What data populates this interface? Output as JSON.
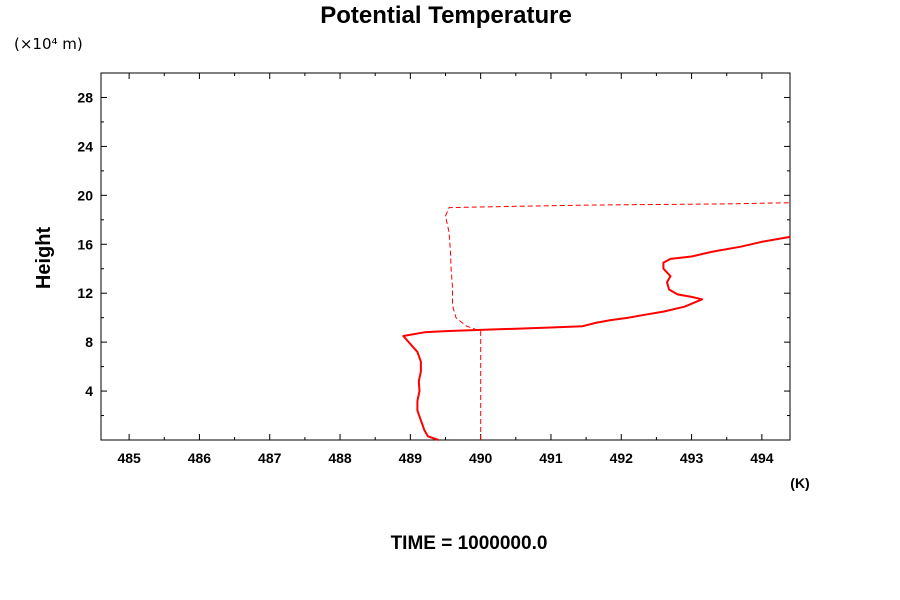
{
  "chart_data": {
    "type": "line",
    "title": "Potential Temperature",
    "ylabel": "Height",
    "y_unit": "(×10⁴ m)",
    "x_unit": "(K)",
    "footer": "TIME = 1000000.0",
    "xlim": [
      484.6,
      494.4
    ],
    "ylim": [
      0,
      30
    ],
    "x_ticks": [
      485,
      486,
      487,
      488,
      489,
      490,
      491,
      492,
      493,
      494
    ],
    "y_ticks": [
      4,
      8,
      12,
      16,
      20,
      24,
      28
    ],
    "grid": false,
    "series": [
      {
        "style": "solid",
        "color": "#ff0000",
        "points": [
          [
            489.4,
            0.0
          ],
          [
            489.25,
            0.3
          ],
          [
            489.2,
            0.8
          ],
          [
            489.15,
            1.6
          ],
          [
            489.1,
            2.4
          ],
          [
            489.1,
            3.2
          ],
          [
            489.13,
            4.0
          ],
          [
            489.12,
            4.8
          ],
          [
            489.15,
            5.6
          ],
          [
            489.15,
            6.4
          ],
          [
            489.1,
            7.2
          ],
          [
            488.9,
            8.5
          ],
          [
            489.2,
            8.8
          ],
          [
            489.5,
            8.9
          ],
          [
            490.0,
            9.0
          ],
          [
            490.5,
            9.1
          ],
          [
            491.0,
            9.2
          ],
          [
            491.45,
            9.3
          ],
          [
            491.65,
            9.6
          ],
          [
            491.85,
            9.8
          ],
          [
            492.1,
            10.0
          ],
          [
            492.3,
            10.2
          ],
          [
            492.6,
            10.5
          ],
          [
            492.9,
            10.9
          ],
          [
            493.15,
            11.5
          ],
          [
            493.0,
            11.7
          ],
          [
            492.8,
            11.9
          ],
          [
            492.68,
            12.3
          ],
          [
            492.65,
            12.9
          ],
          [
            492.7,
            13.4
          ],
          [
            492.6,
            14.0
          ],
          [
            492.6,
            14.5
          ],
          [
            492.7,
            14.8
          ],
          [
            493.0,
            15.0
          ],
          [
            493.3,
            15.4
          ],
          [
            493.7,
            15.8
          ],
          [
            494.0,
            16.2
          ],
          [
            494.4,
            16.6
          ]
        ]
      },
      {
        "style": "dashed",
        "color": "#ff0000",
        "points": [
          [
            490.0,
            0.0
          ],
          [
            490.0,
            8.9
          ],
          [
            489.8,
            9.3
          ],
          [
            489.65,
            10.0
          ],
          [
            489.6,
            11.0
          ],
          [
            489.6,
            12.5
          ],
          [
            489.58,
            14.0
          ],
          [
            489.57,
            15.5
          ],
          [
            489.55,
            17.0
          ],
          [
            489.5,
            18.3
          ],
          [
            489.55,
            19.0
          ],
          [
            490.5,
            19.1
          ],
          [
            491.5,
            19.2
          ],
          [
            492.5,
            19.25
          ],
          [
            493.5,
            19.3
          ],
          [
            494.4,
            19.4
          ]
        ]
      }
    ]
  }
}
